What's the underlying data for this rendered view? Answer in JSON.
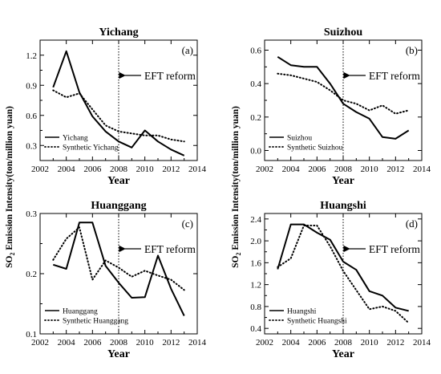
{
  "shared_ylabel": {
    "prefix": "SO",
    "subscript": "2",
    "rest": " Emission Intensity(ton/million yuan)"
  },
  "chart_data": [
    {
      "type": "line",
      "title": "Yichang",
      "panel_label": "(a)",
      "xlabel": "Year",
      "ylabel": "",
      "xlim": [
        2002,
        2014
      ],
      "ylim": [
        0.15,
        1.35
      ],
      "xticks": [
        2002,
        2004,
        2006,
        2008,
        2010,
        2012,
        2014
      ],
      "yticks": [
        0.3,
        0.6,
        0.9,
        1.2
      ],
      "ytick_labels": [
        "0.3",
        "0.6",
        "0.9",
        "1.2"
      ],
      "reform_year": 2008,
      "reform_label": "EFT reform",
      "legend_position": "bottom-left",
      "series": [
        {
          "name": "Yichang",
          "style": "solid",
          "x": [
            2003,
            2004,
            2005,
            2006,
            2007,
            2008,
            2009,
            2010,
            2011,
            2012,
            2013
          ],
          "values": [
            0.88,
            1.24,
            0.83,
            0.59,
            0.44,
            0.34,
            0.28,
            0.45,
            0.34,
            0.26,
            0.2
          ]
        },
        {
          "name": "Synthetic Yichang",
          "style": "dotted",
          "x": [
            2003,
            2004,
            2005,
            2006,
            2007,
            2008,
            2009,
            2010,
            2011,
            2012,
            2013
          ],
          "values": [
            0.85,
            0.78,
            0.82,
            0.66,
            0.5,
            0.44,
            0.42,
            0.4,
            0.4,
            0.36,
            0.34
          ]
        }
      ]
    },
    {
      "type": "line",
      "title": "Suizhou",
      "panel_label": "(b)",
      "xlabel": "Year",
      "ylabel": "",
      "xlim": [
        2002,
        2014
      ],
      "ylim": [
        -0.06,
        0.66
      ],
      "xticks": [
        2002,
        2004,
        2006,
        2008,
        2010,
        2012,
        2014
      ],
      "yticks": [
        0.0,
        0.2,
        0.4,
        0.6
      ],
      "ytick_labels": [
        "0.0",
        "0.2",
        "0.4",
        "0.6"
      ],
      "reform_year": 2008,
      "reform_label": "EFT reform",
      "legend_position": "bottom-left",
      "series": [
        {
          "name": "Suizhou",
          "style": "solid",
          "x": [
            2003,
            2004,
            2005,
            2006,
            2007,
            2008,
            2009,
            2010,
            2011,
            2012,
            2013
          ],
          "values": [
            0.56,
            0.51,
            0.5,
            0.5,
            0.4,
            0.28,
            0.23,
            0.19,
            0.08,
            0.07,
            0.12
          ]
        },
        {
          "name": "Synthetic Suizhou",
          "style": "dotted",
          "x": [
            2003,
            2004,
            2005,
            2006,
            2007,
            2008,
            2009,
            2010,
            2011,
            2012,
            2013
          ],
          "values": [
            0.46,
            0.45,
            0.43,
            0.41,
            0.36,
            0.3,
            0.28,
            0.24,
            0.27,
            0.22,
            0.24
          ]
        }
      ]
    },
    {
      "type": "line",
      "title": "Huanggang",
      "panel_label": "(c)",
      "xlabel": "Year",
      "ylabel": "",
      "xlim": [
        2002,
        2014
      ],
      "ylim": [
        0.1,
        0.3
      ],
      "xticks": [
        2002,
        2004,
        2006,
        2008,
        2010,
        2012,
        2014
      ],
      "yticks": [
        0.1,
        0.2,
        0.3
      ],
      "ytick_labels": [
        "0.1",
        "0.2",
        "0.3"
      ],
      "reform_year": 2008,
      "reform_label": "EFT reform",
      "legend_position": "bottom-left",
      "series": [
        {
          "name": "Huanggang",
          "style": "solid",
          "x": [
            2003,
            2004,
            2005,
            2006,
            2007,
            2008,
            2009,
            2010,
            2011,
            2012,
            2013
          ],
          "values": [
            0.215,
            0.208,
            0.285,
            0.285,
            0.213,
            0.185,
            0.16,
            0.161,
            0.23,
            0.175,
            0.13
          ]
        },
        {
          "name": "Synthetic Huanggang",
          "style": "dotted",
          "x": [
            2003,
            2004,
            2005,
            2006,
            2007,
            2008,
            2009,
            2010,
            2011,
            2012,
            2013
          ],
          "values": [
            0.223,
            0.258,
            0.277,
            0.19,
            0.222,
            0.21,
            0.195,
            0.205,
            0.197,
            0.19,
            0.173
          ]
        }
      ]
    },
    {
      "type": "line",
      "title": "Huangshi",
      "panel_label": "(d)",
      "xlabel": "Year",
      "ylabel": "",
      "xlim": [
        2002,
        2014
      ],
      "ylim": [
        0.3,
        2.5
      ],
      "xticks": [
        2002,
        2004,
        2006,
        2008,
        2010,
        2012,
        2014
      ],
      "yticks": [
        0.4,
        0.8,
        1.2,
        1.6,
        2.0,
        2.4
      ],
      "ytick_labels": [
        "0.4",
        "0.8",
        "1.2",
        "1.6",
        "2.0",
        "2.4"
      ],
      "reform_year": 2008,
      "reform_label": "EFT reform",
      "legend_position": "bottom-left",
      "series": [
        {
          "name": "Huangshi",
          "style": "solid",
          "x": [
            2003,
            2004,
            2005,
            2006,
            2007,
            2008,
            2009,
            2010,
            2011,
            2012,
            2013
          ],
          "values": [
            1.48,
            2.3,
            2.3,
            2.15,
            2.02,
            1.62,
            1.47,
            1.08,
            1.0,
            0.78,
            0.72
          ]
        },
        {
          "name": "Synthetic Huangshi",
          "style": "dotted",
          "x": [
            2003,
            2004,
            2005,
            2006,
            2007,
            2008,
            2009,
            2010,
            2011,
            2012,
            2013
          ],
          "values": [
            1.52,
            1.68,
            2.28,
            2.28,
            1.9,
            1.45,
            1.1,
            0.75,
            0.8,
            0.72,
            0.5
          ]
        }
      ]
    }
  ]
}
